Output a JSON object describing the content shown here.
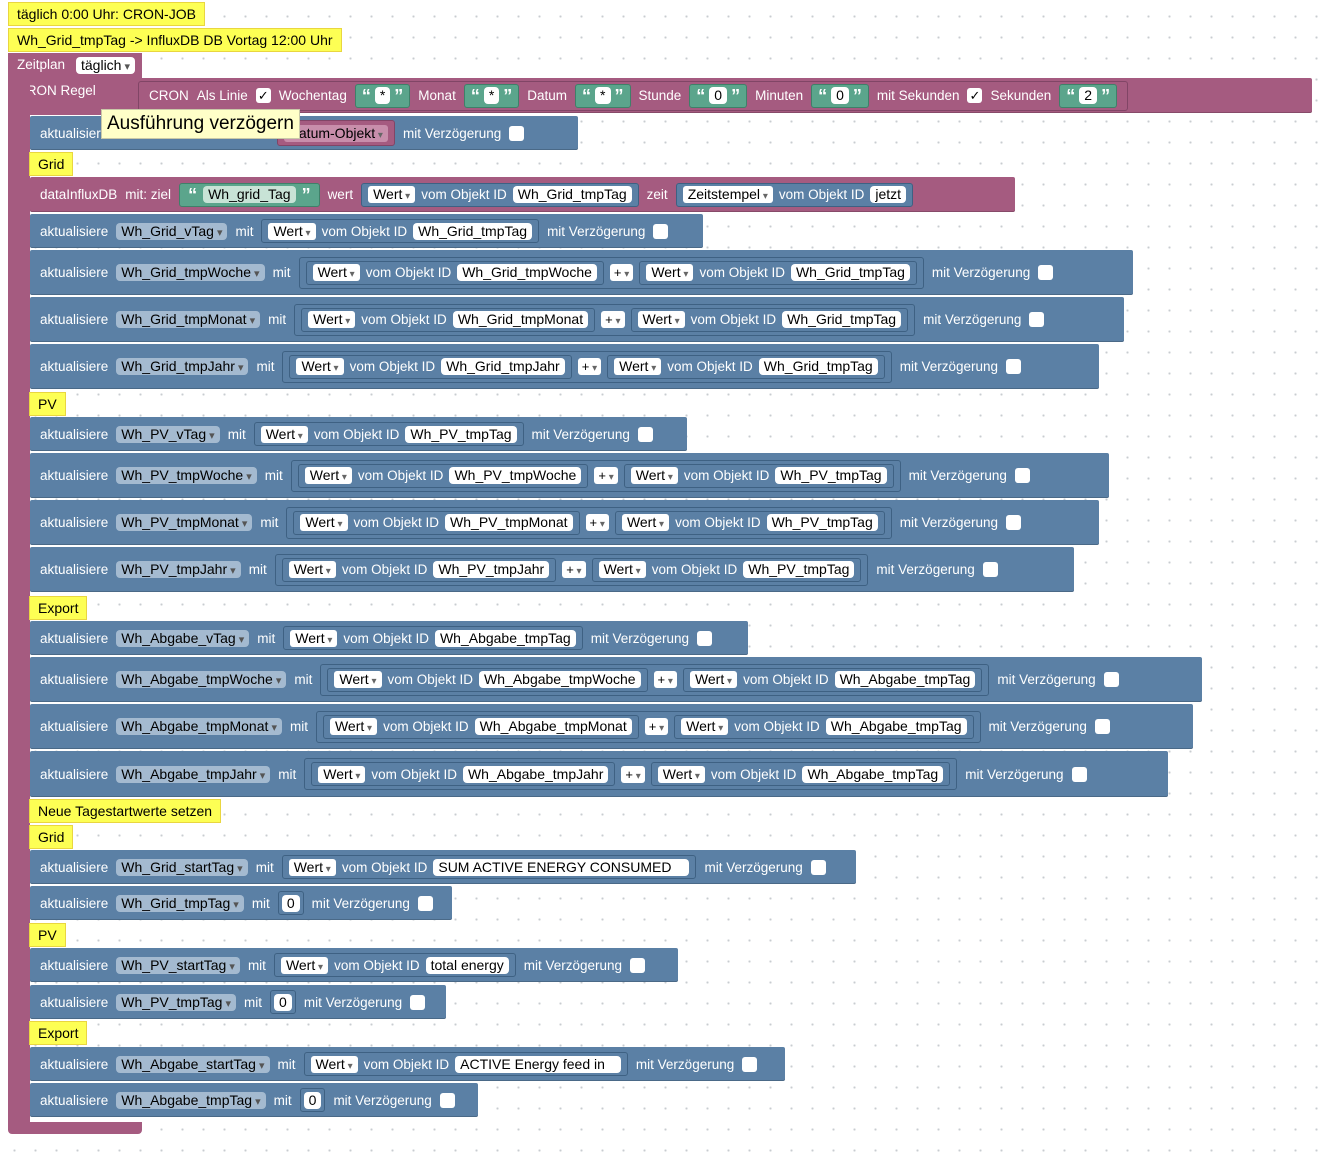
{
  "comments": {
    "cron_job": "täglich 0:00 Uhr: CRON-JOB",
    "influx": "Wh_Grid_tmpTag -> InfluxDB DB Vortag 12:00 Uhr",
    "grid1": "Grid",
    "pv1": "PV",
    "export1": "Export",
    "neue": "Neue Tagestartwerte setzen",
    "grid2": "Grid",
    "pv2": "PV",
    "export2": "Export"
  },
  "schedule": {
    "zeitplan_label": "Zeitplan",
    "zeitplan_value": "täglich",
    "cron_regel_label": "CRON Regel",
    "cron_label": "CRON",
    "als_linie_label": "Als Linie",
    "als_linie_checked": "✓",
    "wochentag_label": "Wochentag",
    "wochentag_value": "*",
    "monat_label": "Monat",
    "monat_value": "*",
    "datum_label": "Datum",
    "datum_value": "*",
    "stunde_label": "Stunde",
    "stunde_value": "0",
    "minuten_label": "Minuten",
    "minuten_value": "0",
    "mit_sekunden_label": "mit Sekunden",
    "mit_sekunden_checked": "✓",
    "sekunden_label": "Sekunden",
    "sekunden_value": "2"
  },
  "tooltip": "Ausführung verzögern",
  "first_row": {
    "label": "aktualisier",
    "datum_objekt": "Datum-Objekt",
    "delay": "mit Verzögerung"
  },
  "influx_block": {
    "label": "dataInfluxDB",
    "mit_ziel": "mit:  ziel",
    "ziel_value": "Wh_grid_Tag",
    "wert_label": "wert",
    "wert_dd": "Wert",
    "vom_objekt": "vom Objekt ID",
    "wert_obj": "Wh_Grid_tmpTag",
    "zeit_label": "zeit",
    "zeit_dd": "Zeitstempel",
    "zeit_obj": "jetzt"
  },
  "labels": {
    "aktualisiere": "aktualisiere",
    "mit": "mit",
    "wert": "Wert",
    "vom_objekt": "vom Objekt ID",
    "plus": "+",
    "delay": "mit Verzögerung"
  },
  "simple_rows": [
    {
      "var": "Wh_Grid_vTag",
      "obj": "Wh_Grid_tmpTag"
    },
    {
      "var": "Wh_PV_vTag",
      "obj": "Wh_PV_tmpTag"
    },
    {
      "var": "Wh_Abgabe_vTag",
      "obj": "Wh_Abgabe_tmpTag"
    }
  ],
  "sum_rows": [
    {
      "var": "Wh_Grid_tmpWoche",
      "a": "Wh_Grid_tmpWoche",
      "b": "Wh_Grid_tmpTag"
    },
    {
      "var": "Wh_Grid_tmpMonat",
      "a": "Wh_Grid_tmpMonat",
      "b": "Wh_Grid_tmpTag"
    },
    {
      "var": "Wh_Grid_tmpJahr",
      "a": "Wh_Grid_tmpJahr",
      "b": "Wh_Grid_tmpTag"
    },
    {
      "var": "Wh_PV_tmpWoche",
      "a": "Wh_PV_tmpWoche",
      "b": "Wh_PV_tmpTag"
    },
    {
      "var": "Wh_PV_tmpMonat",
      "a": "Wh_PV_tmpMonat",
      "b": "Wh_PV_tmpTag"
    },
    {
      "var": "Wh_PV_tmpJahr",
      "a": "Wh_PV_tmpJahr",
      "b": "Wh_PV_tmpTag"
    },
    {
      "var": "Wh_Abgabe_tmpWoche",
      "a": "Wh_Abgabe_tmpWoche",
      "b": "Wh_Abgabe_tmpTag"
    },
    {
      "var": "Wh_Abgabe_tmpMonat",
      "a": "Wh_Abgabe_tmpMonat",
      "b": "Wh_Abgabe_tmpTag"
    },
    {
      "var": "Wh_Abgabe_tmpJahr",
      "a": "Wh_Abgabe_tmpJahr",
      "b": "Wh_Abgabe_tmpTag"
    }
  ],
  "start_rows": [
    {
      "var": "Wh_Grid_startTag",
      "obj": "SUM ACTIVE ENERGY CONSUMED"
    },
    {
      "var": "Wh_PV_startTag",
      "obj": "total energy"
    },
    {
      "var": "Wh_Abgabe_startTag",
      "obj": "ACTIVE Energy feed in"
    }
  ],
  "zero_rows": [
    {
      "var": "Wh_Grid_tmpTag",
      "value": "0"
    },
    {
      "var": "Wh_PV_tmpTag",
      "value": "0"
    },
    {
      "var": "Wh_Abgabe_tmpTag",
      "value": "0"
    }
  ]
}
